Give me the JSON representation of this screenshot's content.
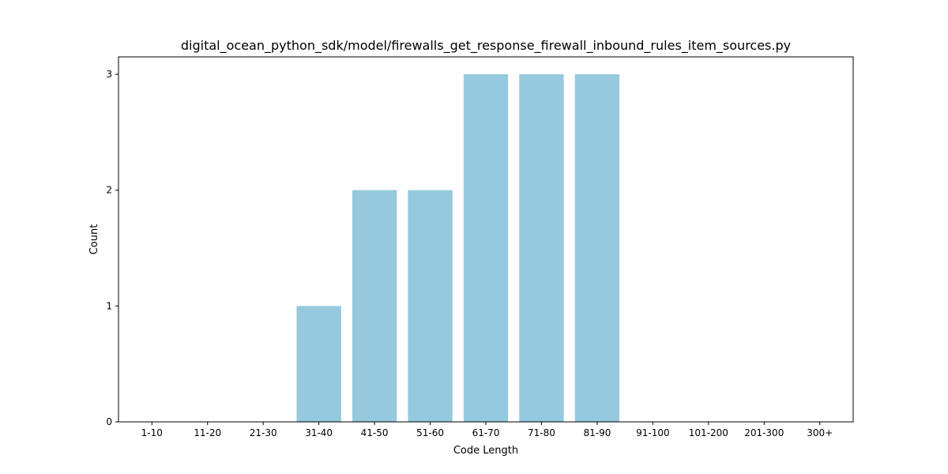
{
  "chart_data": {
    "type": "bar",
    "title": "digital_ocean_python_sdk/model/firewalls_get_response_firewall_inbound_rules_item_sources.py",
    "xlabel": "Code Length",
    "ylabel": "Count",
    "categories": [
      "1-10",
      "11-20",
      "21-30",
      "31-40",
      "41-50",
      "51-60",
      "61-70",
      "71-80",
      "81-90",
      "91-100",
      "101-200",
      "201-300",
      "300+"
    ],
    "values": [
      0,
      0,
      0,
      1,
      2,
      2,
      3,
      3,
      3,
      0,
      0,
      0,
      0
    ],
    "ylim": [
      0,
      3.15
    ],
    "yticks": [
      0,
      1,
      2,
      3
    ],
    "bar_color": "#96c9dd",
    "grid": false,
    "legend": "none"
  }
}
